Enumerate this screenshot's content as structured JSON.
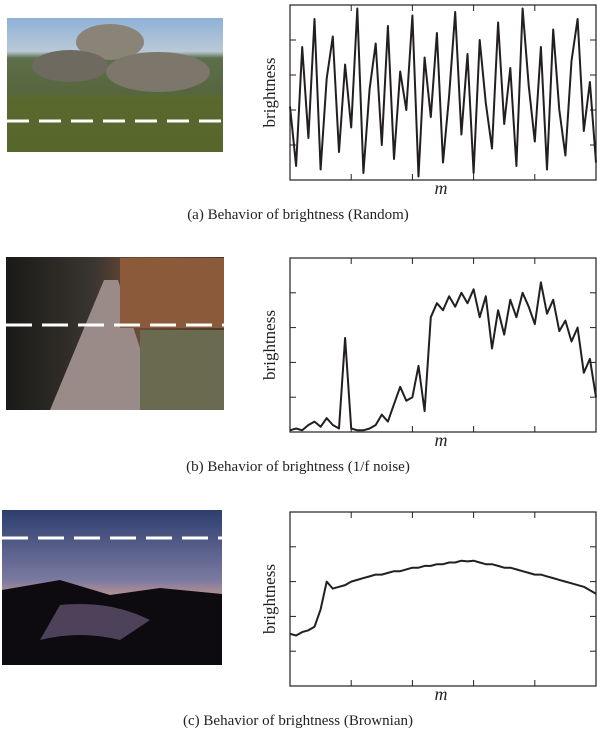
{
  "chart_data": [
    {
      "type": "line",
      "caption": "(a) Behavior of brightness (Random)",
      "ylabel": "brightness",
      "xlabel": "m",
      "color": "#231f20",
      "xlim": [
        0,
        5
      ],
      "xticks": [
        1,
        2,
        3,
        4
      ],
      "ylim": [
        0,
        5
      ],
      "yticks": [
        1,
        2,
        3,
        4
      ],
      "x": [
        0,
        0.1,
        0.2,
        0.3,
        0.4,
        0.5,
        0.6,
        0.7,
        0.8,
        0.9,
        1,
        1.1,
        1.2,
        1.3,
        1.4,
        1.5,
        1.6,
        1.7,
        1.8,
        1.9,
        2,
        2.1,
        2.2,
        2.3,
        2.4,
        2.5,
        2.6,
        2.7,
        2.8,
        2.9,
        3,
        3.1,
        3.2,
        3.3,
        3.4,
        3.5,
        3.6,
        3.7,
        3.8,
        3.9,
        4,
        4.1,
        4.2,
        4.3,
        4.4,
        4.5,
        4.6,
        4.7,
        4.8,
        4.9,
        5
      ],
      "values": [
        2.1,
        0.4,
        3.8,
        1.2,
        4.6,
        0.3,
        2.9,
        4.1,
        0.8,
        3.3,
        1.5,
        4.9,
        0.2,
        2.6,
        3.9,
        1.0,
        4.4,
        0.6,
        3.1,
        2.0,
        4.7,
        0.1,
        3.5,
        1.8,
        4.2,
        0.5,
        2.4,
        4.8,
        1.3,
        3.6,
        0.2,
        4.0,
        2.2,
        0.9,
        4.5,
        1.6,
        3.2,
        0.4,
        4.9,
        2.7,
        1.1,
        3.8,
        0.3,
        4.3,
        2.0,
        0.7,
        3.4,
        4.6,
        1.4,
        2.8,
        0.5
      ]
    },
    {
      "type": "line",
      "caption": "(b) Behavior of brightness (1/f noise)",
      "ylabel": "brightness",
      "xlabel": "m",
      "color": "#231f20",
      "xlim": [
        0,
        5
      ],
      "xticks": [
        1,
        2,
        3,
        4
      ],
      "ylim": [
        0,
        5
      ],
      "yticks": [
        1,
        2,
        3,
        4
      ],
      "x": [
        0,
        0.1,
        0.2,
        0.3,
        0.4,
        0.5,
        0.6,
        0.7,
        0.8,
        0.9,
        1,
        1.1,
        1.2,
        1.3,
        1.4,
        1.5,
        1.6,
        1.7,
        1.8,
        1.9,
        2,
        2.1,
        2.2,
        2.3,
        2.4,
        2.5,
        2.6,
        2.7,
        2.8,
        2.9,
        3,
        3.1,
        3.2,
        3.3,
        3.4,
        3.5,
        3.6,
        3.7,
        3.8,
        3.9,
        4,
        4.1,
        4.2,
        4.3,
        4.4,
        4.5,
        4.6,
        4.7,
        4.8,
        4.9,
        5
      ],
      "values": [
        0.05,
        0.1,
        0.05,
        0.2,
        0.3,
        0.15,
        0.4,
        0.2,
        0.1,
        2.7,
        0.1,
        0.05,
        0.05,
        0.1,
        0.2,
        0.5,
        0.3,
        0.8,
        1.3,
        0.9,
        1.0,
        1.9,
        0.6,
        3.3,
        3.7,
        3.5,
        3.9,
        3.6,
        4.0,
        3.7,
        4.1,
        3.3,
        3.9,
        2.4,
        3.5,
        2.8,
        3.8,
        3.3,
        4.0,
        3.6,
        3.1,
        4.3,
        3.4,
        3.8,
        2.9,
        3.2,
        2.6,
        3.0,
        1.7,
        2.1,
        1.0
      ]
    },
    {
      "type": "line",
      "caption": "(c) Behavior of brightness (Brownian)",
      "ylabel": "brightness",
      "xlabel": "m",
      "color": "#231f20",
      "xlim": [
        0,
        5
      ],
      "xticks": [
        1,
        2,
        3,
        4
      ],
      "ylim": [
        0,
        5
      ],
      "yticks": [
        1,
        2,
        3,
        4
      ],
      "x": [
        0,
        0.1,
        0.2,
        0.3,
        0.4,
        0.5,
        0.6,
        0.7,
        0.8,
        0.9,
        1,
        1.1,
        1.2,
        1.3,
        1.4,
        1.5,
        1.6,
        1.7,
        1.8,
        1.9,
        2,
        2.1,
        2.2,
        2.3,
        2.4,
        2.5,
        2.6,
        2.7,
        2.8,
        2.9,
        3,
        3.1,
        3.2,
        3.3,
        3.4,
        3.5,
        3.6,
        3.7,
        3.8,
        3.9,
        4,
        4.1,
        4.2,
        4.3,
        4.4,
        4.5,
        4.6,
        4.7,
        4.8,
        4.9,
        5
      ],
      "values": [
        1.5,
        1.45,
        1.55,
        1.6,
        1.7,
        2.2,
        3.0,
        2.8,
        2.85,
        2.9,
        3.0,
        3.05,
        3.1,
        3.15,
        3.2,
        3.2,
        3.25,
        3.3,
        3.3,
        3.35,
        3.4,
        3.4,
        3.45,
        3.45,
        3.5,
        3.5,
        3.55,
        3.55,
        3.6,
        3.58,
        3.6,
        3.55,
        3.5,
        3.5,
        3.45,
        3.4,
        3.4,
        3.35,
        3.3,
        3.25,
        3.2,
        3.2,
        3.15,
        3.1,
        3.05,
        3.0,
        2.95,
        2.9,
        2.85,
        2.75,
        2.65
      ]
    }
  ]
}
